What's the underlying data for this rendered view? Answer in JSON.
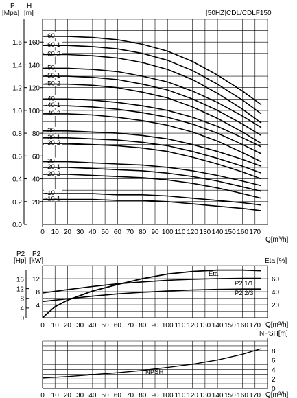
{
  "header": {
    "model_label": "[50HZ]CDL/CDLF150"
  },
  "top_chart": {
    "p_axis_title": "P",
    "p_axis_unit": "[Mpa]",
    "h_axis_title": "H",
    "h_axis_unit": "[m]",
    "x_axis_label": "Q[m³/h]"
  },
  "power_chart": {
    "p2_hp_title": "P2",
    "p2_hp_unit": "[Hp]",
    "p2_kw_title": "P2",
    "p2_kw_unit": "[kW]",
    "eta_title": "Eta [%]",
    "x_axis_label": "Q[m³/h]",
    "eta_curve_label": "Eta",
    "p2_1_label": "P2 1/1",
    "p2_2_label": "P2 2/3"
  },
  "npsh_chart": {
    "title": "NPSH[m]",
    "x_axis_label": "Q[m³/h]",
    "curve_label": "NPSH"
  },
  "chart_data": [
    {
      "type": "line",
      "name": "head",
      "x_ticks": [
        0,
        10,
        20,
        30,
        40,
        50,
        60,
        70,
        80,
        90,
        100,
        110,
        120,
        130,
        140,
        150,
        160,
        170
      ],
      "xlim": [
        0,
        180
      ],
      "h_ticks": [
        20,
        40,
        60,
        80,
        100,
        120,
        140,
        160
      ],
      "ylim_h": [
        0,
        180
      ],
      "p_ticks": [
        "0.0",
        "0.2",
        "0.4",
        "0.6",
        "0.8",
        "1.0",
        "1.2",
        "1.4",
        "1.6"
      ],
      "ylim_p": [
        0,
        1.8
      ],
      "series": [
        {
          "name": "-60",
          "points": [
            [
              0,
              165
            ],
            [
              20,
              165
            ],
            [
              40,
              164
            ],
            [
              60,
              162
            ],
            [
              80,
              158
            ],
            [
              100,
              152
            ],
            [
              120,
              143
            ],
            [
              140,
              131
            ],
            [
              160,
              117
            ],
            [
              175,
              105
            ]
          ]
        },
        {
          "name": "-60-1",
          "points": [
            [
              0,
              157
            ],
            [
              20,
              157
            ],
            [
              40,
              156
            ],
            [
              60,
              154
            ],
            [
              80,
              150
            ],
            [
              100,
              144
            ],
            [
              120,
              135
            ],
            [
              140,
              123
            ],
            [
              160,
              109
            ],
            [
              175,
              97
            ]
          ]
        },
        {
          "name": "-60-2",
          "points": [
            [
              0,
              149
            ],
            [
              20,
              149
            ],
            [
              40,
              148
            ],
            [
              60,
              146
            ],
            [
              80,
              142
            ],
            [
              100,
              136
            ],
            [
              120,
              127
            ],
            [
              140,
              115
            ],
            [
              160,
              101
            ],
            [
              175,
              89
            ]
          ]
        },
        {
          "name": "-50",
          "points": [
            [
              0,
              137
            ],
            [
              20,
              137
            ],
            [
              40,
              136
            ],
            [
              60,
              134
            ],
            [
              80,
              130
            ],
            [
              100,
              125
            ],
            [
              120,
              117
            ],
            [
              140,
              107
            ],
            [
              160,
              95
            ],
            [
              175,
              85
            ]
          ]
        },
        {
          "name": "-50-1",
          "points": [
            [
              0,
              130
            ],
            [
              20,
              130
            ],
            [
              40,
              129
            ],
            [
              60,
              127
            ],
            [
              80,
              123
            ],
            [
              100,
              118
            ],
            [
              120,
              110
            ],
            [
              140,
              100
            ],
            [
              160,
              88
            ],
            [
              175,
              78
            ]
          ]
        },
        {
          "name": "-50-2",
          "points": [
            [
              0,
              123
            ],
            [
              20,
              123
            ],
            [
              40,
              122
            ],
            [
              60,
              120
            ],
            [
              80,
              116
            ],
            [
              100,
              111
            ],
            [
              120,
              103
            ],
            [
              140,
              93
            ],
            [
              160,
              81
            ],
            [
              175,
              71
            ]
          ]
        },
        {
          "name": "-40",
          "points": [
            [
              0,
              110
            ],
            [
              20,
              110
            ],
            [
              40,
              109
            ],
            [
              60,
              107
            ],
            [
              80,
              104
            ],
            [
              100,
              100
            ],
            [
              120,
              94
            ],
            [
              140,
              86
            ],
            [
              160,
              76
            ],
            [
              175,
              68
            ]
          ]
        },
        {
          "name": "-40-1",
          "points": [
            [
              0,
              104
            ],
            [
              20,
              104
            ],
            [
              40,
              103
            ],
            [
              60,
              101
            ],
            [
              80,
              98
            ],
            [
              100,
              94
            ],
            [
              120,
              88
            ],
            [
              140,
              80
            ],
            [
              160,
              70
            ],
            [
              175,
              62
            ]
          ]
        },
        {
          "name": "-40-2",
          "points": [
            [
              0,
              97
            ],
            [
              20,
              97
            ],
            [
              40,
              96
            ],
            [
              60,
              94
            ],
            [
              80,
              91
            ],
            [
              100,
              87
            ],
            [
              120,
              81
            ],
            [
              140,
              73
            ],
            [
              160,
              63
            ],
            [
              175,
              55
            ]
          ]
        },
        {
          "name": "-30",
          "points": [
            [
              0,
              82
            ],
            [
              20,
              82
            ],
            [
              40,
              81
            ],
            [
              60,
              80
            ],
            [
              80,
              78
            ],
            [
              100,
              75
            ],
            [
              120,
              70
            ],
            [
              140,
              64
            ],
            [
              160,
              57
            ],
            [
              175,
              51
            ]
          ]
        },
        {
          "name": "-30-1",
          "points": [
            [
              0,
              76
            ],
            [
              20,
              76
            ],
            [
              40,
              75
            ],
            [
              60,
              74
            ],
            [
              80,
              72
            ],
            [
              100,
              69
            ],
            [
              120,
              64
            ],
            [
              140,
              58
            ],
            [
              160,
              51
            ],
            [
              175,
              45
            ]
          ]
        },
        {
          "name": "-30-2",
          "points": [
            [
              0,
              71
            ],
            [
              20,
              71
            ],
            [
              40,
              70
            ],
            [
              60,
              69
            ],
            [
              80,
              67
            ],
            [
              100,
              64
            ],
            [
              120,
              59
            ],
            [
              140,
              53
            ],
            [
              160,
              46
            ],
            [
              175,
              40
            ]
          ]
        },
        {
          "name": "-20",
          "points": [
            [
              0,
              55
            ],
            [
              20,
              55
            ],
            [
              40,
              54
            ],
            [
              60,
              53
            ],
            [
              80,
              52
            ],
            [
              100,
              50
            ],
            [
              120,
              47
            ],
            [
              140,
              43
            ],
            [
              160,
              38
            ],
            [
              175,
              34
            ]
          ]
        },
        {
          "name": "-20-1",
          "points": [
            [
              0,
              50
            ],
            [
              20,
              50
            ],
            [
              40,
              49
            ],
            [
              60,
              48
            ],
            [
              80,
              47
            ],
            [
              100,
              45
            ],
            [
              120,
              42
            ],
            [
              140,
              38
            ],
            [
              160,
              33
            ],
            [
              175,
              29
            ]
          ]
        },
        {
          "name": "-20-2",
          "points": [
            [
              0,
              44
            ],
            [
              20,
              44
            ],
            [
              40,
              43
            ],
            [
              60,
              42
            ],
            [
              80,
              41
            ],
            [
              100,
              39
            ],
            [
              120,
              36
            ],
            [
              140,
              32
            ],
            [
              160,
              27
            ],
            [
              175,
              23
            ]
          ]
        },
        {
          "name": "-10",
          "points": [
            [
              0,
              27
            ],
            [
              20,
              27
            ],
            [
              40,
              27
            ],
            [
              60,
              26
            ],
            [
              80,
              26
            ],
            [
              100,
              25
            ],
            [
              120,
              23
            ],
            [
              140,
              21
            ],
            [
              160,
              19
            ],
            [
              175,
              17
            ]
          ]
        },
        {
          "name": "-10-1",
          "points": [
            [
              0,
              22
            ],
            [
              20,
              22
            ],
            [
              40,
              22
            ],
            [
              60,
              21
            ],
            [
              80,
              21
            ],
            [
              100,
              20
            ],
            [
              120,
              18
            ],
            [
              140,
              16
            ],
            [
              160,
              14
            ],
            [
              175,
              12
            ]
          ]
        }
      ]
    },
    {
      "type": "line",
      "name": "power_efficiency",
      "x_ticks": [
        0,
        10,
        20,
        30,
        40,
        50,
        60,
        70,
        80,
        90,
        100,
        110,
        120,
        130,
        140,
        150,
        160,
        170
      ],
      "xlim": [
        0,
        180
      ],
      "kw_ticks": [
        4,
        8,
        12
      ],
      "hp_ticks": [
        4,
        8,
        12,
        16
      ],
      "eta_ticks": [
        20,
        40,
        60
      ],
      "ylim_eta": [
        0,
        80
      ],
      "series": [
        {
          "name": "Eta",
          "points": [
            [
              0,
              0
            ],
            [
              10,
              17
            ],
            [
              20,
              27
            ],
            [
              40,
              41
            ],
            [
              60,
              51
            ],
            [
              80,
              60
            ],
            [
              100,
              67
            ],
            [
              120,
              71
            ],
            [
              140,
              73
            ],
            [
              160,
              73
            ],
            [
              175,
              72
            ]
          ]
        },
        {
          "name": "P2 1/1",
          "points": [
            [
              0,
              38
            ],
            [
              20,
              43
            ],
            [
              40,
              48
            ],
            [
              60,
              52
            ],
            [
              80,
              55
            ],
            [
              100,
              57.5
            ],
            [
              120,
              59
            ],
            [
              140,
              60
            ],
            [
              160,
              60.5
            ],
            [
              175,
              60.5
            ]
          ]
        },
        {
          "name": "P2 2/3",
          "points": [
            [
              0,
              25
            ],
            [
              20,
              29
            ],
            [
              40,
              33
            ],
            [
              60,
              36.5
            ],
            [
              80,
              39
            ],
            [
              100,
              41
            ],
            [
              120,
              42.5
            ],
            [
              140,
              43.5
            ],
            [
              160,
              44
            ],
            [
              175,
              44
            ]
          ]
        }
      ]
    },
    {
      "type": "line",
      "name": "npsh",
      "x_ticks": [
        0,
        10,
        20,
        30,
        40,
        50,
        60,
        70,
        80,
        90,
        100,
        110,
        120,
        130,
        140,
        150,
        160,
        170
      ],
      "xlim": [
        0,
        180
      ],
      "y_ticks": [
        0,
        2,
        4,
        6,
        8
      ],
      "ylim": [
        0,
        10
      ],
      "series": [
        {
          "name": "NPSH",
          "points": [
            [
              0,
              2.2
            ],
            [
              20,
              2.5
            ],
            [
              40,
              2.9
            ],
            [
              60,
              3.3
            ],
            [
              80,
              3.8
            ],
            [
              100,
              4.4
            ],
            [
              120,
              5.1
            ],
            [
              140,
              6.0
            ],
            [
              160,
              7.2
            ],
            [
              175,
              8.4
            ]
          ]
        }
      ]
    }
  ]
}
